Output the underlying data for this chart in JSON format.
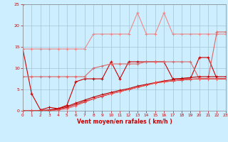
{
  "x": [
    0,
    1,
    2,
    3,
    4,
    5,
    6,
    7,
    8,
    9,
    10,
    11,
    12,
    13,
    14,
    15,
    16,
    17,
    18,
    19,
    20,
    21,
    22,
    23
  ],
  "lines": [
    {
      "name": "dark_red_volatile",
      "color": "#cc0000",
      "lw": 0.8,
      "marker": "+",
      "ms": 3,
      "mew": 0.8,
      "y": [
        14.5,
        4.0,
        0.2,
        0.8,
        0.5,
        1.3,
        6.8,
        7.5,
        7.5,
        7.5,
        11.5,
        7.5,
        11.5,
        11.5,
        11.5,
        11.5,
        11.5,
        7.5,
        7.5,
        7.5,
        12.5,
        12.5,
        7.5,
        7.5
      ]
    },
    {
      "name": "light_pink_flat_top",
      "color": "#ee8888",
      "lw": 0.8,
      "marker": "+",
      "ms": 3,
      "mew": 0.8,
      "y": [
        14.5,
        14.5,
        14.5,
        14.5,
        14.5,
        14.5,
        14.5,
        14.5,
        18.0,
        18.0,
        18.0,
        18.0,
        18.0,
        23.0,
        18.0,
        18.0,
        23.0,
        18.0,
        18.0,
        18.0,
        18.0,
        18.0,
        18.0,
        18.0
      ]
    },
    {
      "name": "medium_pink_mid",
      "color": "#dd6666",
      "lw": 0.8,
      "marker": "+",
      "ms": 3,
      "mew": 0.8,
      "y": [
        8.0,
        8.0,
        8.0,
        8.0,
        8.0,
        8.0,
        8.0,
        8.0,
        10.0,
        10.5,
        11.0,
        11.0,
        11.0,
        11.0,
        11.5,
        11.5,
        11.5,
        11.5,
        11.5,
        11.5,
        7.5,
        7.5,
        18.5,
        18.5
      ]
    },
    {
      "name": "line_diagonal_1",
      "color": "#bb0000",
      "lw": 0.8,
      "marker": "+",
      "ms": 2.5,
      "mew": 0.7,
      "y": [
        0.0,
        0.0,
        0.1,
        0.2,
        0.5,
        1.0,
        1.8,
        2.5,
        3.2,
        3.8,
        4.3,
        4.8,
        5.2,
        5.8,
        6.2,
        6.6,
        7.0,
        7.3,
        7.6,
        7.8,
        8.0,
        8.0,
        8.0,
        8.0
      ]
    },
    {
      "name": "line_diagonal_2",
      "color": "#cc2222",
      "lw": 0.8,
      "marker": "+",
      "ms": 2.5,
      "mew": 0.7,
      "y": [
        0.0,
        0.0,
        0.0,
        0.1,
        0.3,
        0.8,
        1.5,
        2.2,
        2.8,
        3.4,
        4.0,
        4.5,
        5.0,
        5.5,
        6.0,
        6.5,
        6.8,
        7.0,
        7.2,
        7.4,
        7.5,
        7.5,
        7.5,
        7.5
      ]
    },
    {
      "name": "line_diagonal_3",
      "color": "#ee5555",
      "lw": 0.8,
      "marker": "+",
      "ms": 2.5,
      "mew": 0.7,
      "y": [
        0.0,
        0.0,
        0.0,
        0.0,
        0.2,
        0.5,
        1.2,
        2.0,
        2.8,
        3.5,
        4.0,
        4.5,
        5.0,
        5.5,
        6.0,
        6.5,
        6.8,
        7.0,
        7.2,
        7.4,
        7.5,
        7.5,
        7.5,
        7.5
      ]
    }
  ],
  "point_at_0": [
    0,
    25
  ],
  "xlabel": "Vent moyen/en rafales ( km/h )",
  "ylim": [
    0,
    25
  ],
  "xlim": [
    0,
    23
  ],
  "yticks": [
    0,
    5,
    10,
    15,
    20,
    25
  ],
  "xticks": [
    0,
    1,
    2,
    3,
    4,
    5,
    6,
    7,
    8,
    9,
    10,
    11,
    12,
    13,
    14,
    15,
    16,
    17,
    18,
    19,
    20,
    21,
    22,
    23
  ],
  "bg_color": "#cceeff",
  "grid_color": "#99bbcc",
  "label_color": "#cc0000",
  "tick_color": "#cc0000",
  "spine_color": "#888888"
}
